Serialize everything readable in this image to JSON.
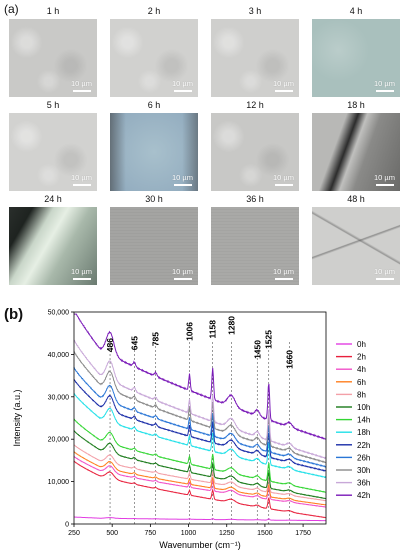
{
  "panel_a": {
    "label": "(a)",
    "scale_text": "10 µm",
    "tiles": [
      {
        "time": "1 h",
        "style": "gray",
        "color": "#c9c9c7"
      },
      {
        "time": "2 h",
        "style": "gray",
        "color": "#d1d1cf"
      },
      {
        "time": "3 h",
        "style": "gray",
        "color": "#cfcfcd"
      },
      {
        "time": "4 h",
        "style": "teal",
        "color": "#a9c0bd"
      },
      {
        "time": "5 h",
        "style": "gray",
        "color": "#d2d2d0"
      },
      {
        "time": "6 h",
        "style": "blue",
        "color": "#8fa9bd"
      },
      {
        "time": "12 h",
        "style": "gray",
        "color": "#c8c8c6"
      },
      {
        "time": "18 h",
        "style": "dark",
        "color": "#9c9c9a"
      },
      {
        "time": "24 h",
        "style": "crystal",
        "color": "#6f7b73"
      },
      {
        "time": "30 h",
        "style": "uniform",
        "color": "#a4a4a2"
      },
      {
        "time": "36 h",
        "style": "uniform",
        "color": "#a9a9a7"
      },
      {
        "time": "48 h",
        "style": "cracked",
        "color": "#cfcfcd"
      }
    ]
  },
  "panel_b": {
    "label": "(b)"
  },
  "chart_data": {
    "type": "line",
    "xlabel": "Wavenumber (cm⁻¹)",
    "ylabel": "Intensity (a.u.)",
    "xlim": [
      250,
      1900
    ],
    "ylim": [
      0,
      50000
    ],
    "x_ticks": [
      250,
      500,
      750,
      1000,
      1250,
      1500,
      1750
    ],
    "y_ticks": [
      0,
      10000,
      20000,
      30000,
      40000,
      50000
    ],
    "y_tick_labels": [
      "0",
      "10,000",
      "20,000",
      "30,000",
      "40,000",
      "50,000"
    ],
    "peak_markers": [
      {
        "label": "486",
        "x": 486
      },
      {
        "label": "645",
        "x": 645
      },
      {
        "label": "785",
        "x": 785
      },
      {
        "label": "1006",
        "x": 1006
      },
      {
        "label": "1158",
        "x": 1158
      },
      {
        "label": "1280",
        "x": 1280
      },
      {
        "label": "1450",
        "x": 1450
      },
      {
        "label": "1525",
        "x": 1525
      },
      {
        "label": "1660",
        "x": 1660
      }
    ],
    "legend_position": "right",
    "series": [
      {
        "name": "0h",
        "color": "#e23de2",
        "baseline_start": 1500,
        "baseline_end": 800
      },
      {
        "name": "2h",
        "color": "#e8203c",
        "baseline_start": 13500,
        "baseline_end": 1500
      },
      {
        "name": "4h",
        "color": "#f050c8",
        "baseline_start": 14500,
        "baseline_end": 4000
      },
      {
        "name": "6h",
        "color": "#ff7f1f",
        "baseline_start": 15500,
        "baseline_end": 4500
      },
      {
        "name": "8h",
        "color": "#f3a0a8",
        "baseline_start": 17000,
        "baseline_end": 5500
      },
      {
        "name": "10h",
        "color": "#1a7a1a",
        "baseline_start": 20000,
        "baseline_end": 6000
      },
      {
        "name": "14h",
        "color": "#33d633",
        "baseline_start": 22500,
        "baseline_end": 7500
      },
      {
        "name": "18h",
        "color": "#22e0e8",
        "baseline_start": 28000,
        "baseline_end": 11000
      },
      {
        "name": "22h",
        "color": "#1a2da8",
        "baseline_start": 31000,
        "baseline_end": 12500
      },
      {
        "name": "26h",
        "color": "#2a76d6",
        "baseline_start": 33500,
        "baseline_end": 13500
      },
      {
        "name": "30h",
        "color": "#8a8a8a",
        "baseline_start": 37000,
        "baseline_end": 14500
      },
      {
        "name": "36h",
        "color": "#c8a8d8",
        "baseline_start": 39500,
        "baseline_end": 15500
      },
      {
        "name": "42h",
        "color": "#7a1ab8",
        "baseline_start": 46000,
        "baseline_end": 20000
      }
    ]
  }
}
